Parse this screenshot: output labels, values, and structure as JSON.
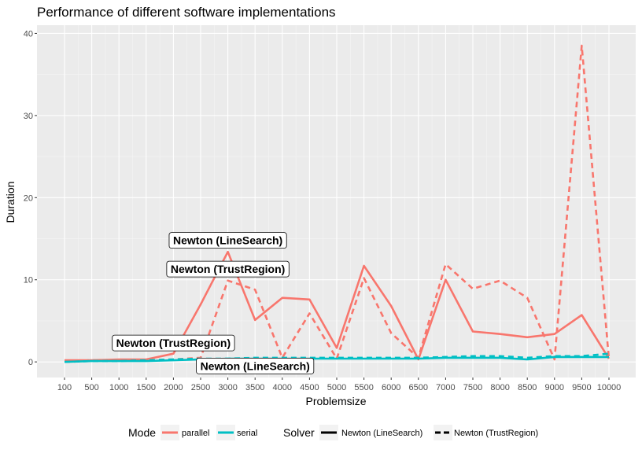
{
  "chart_data": {
    "type": "line",
    "title": "Performance of different software implementations",
    "xlabel": "Problemsize",
    "ylabel": "Duration",
    "categories": [
      "100",
      "500",
      "1000",
      "1500",
      "2000",
      "2500",
      "3000",
      "3500",
      "4000",
      "4500",
      "5000",
      "5500",
      "6000",
      "6500",
      "7000",
      "7500",
      "8000",
      "8500",
      "9000",
      "9500",
      "10000"
    ],
    "y_ticks": [
      0,
      10,
      20,
      30,
      40
    ],
    "ylim": [
      -1.9,
      41
    ],
    "grid": true,
    "series": [
      {
        "mode": "parallel",
        "solver": "Newton (LineSearch)",
        "color": "#F8766D",
        "dash": "solid",
        "values": [
          0.2,
          0.2,
          0.3,
          0.3,
          1.0,
          7.0,
          13.4,
          5.1,
          7.8,
          7.6,
          1.7,
          11.7,
          6.8,
          0.3,
          10.0,
          3.7,
          3.4,
          3.0,
          3.4,
          5.7,
          0.4
        ]
      },
      {
        "mode": "parallel",
        "solver": "Newton (TrustRegion)",
        "color": "#F8766D",
        "dash": "dashed",
        "values": [
          0.1,
          0.2,
          0.2,
          0.2,
          0.3,
          0.5,
          9.9,
          8.8,
          0.5,
          5.9,
          0.4,
          10.2,
          3.5,
          0.5,
          11.9,
          8.9,
          9.9,
          7.8,
          0.3,
          38.5,
          0.3
        ]
      },
      {
        "mode": "serial",
        "solver": "Newton (LineSearch)",
        "color": "#00BFC4",
        "dash": "solid",
        "values": [
          0.0,
          0.1,
          0.1,
          0.1,
          0.2,
          0.3,
          0.4,
          0.4,
          0.4,
          0.4,
          0.4,
          0.4,
          0.4,
          0.4,
          0.5,
          0.5,
          0.5,
          0.3,
          0.6,
          0.6,
          0.6
        ]
      },
      {
        "mode": "serial",
        "solver": "Newton (TrustRegion)",
        "color": "#00BFC4",
        "dash": "dashed",
        "values": [
          0.0,
          0.1,
          0.1,
          0.2,
          0.3,
          0.4,
          0.4,
          0.5,
          0.5,
          0.5,
          0.5,
          0.5,
          0.5,
          0.5,
          0.6,
          0.7,
          0.7,
          0.5,
          0.7,
          0.7,
          1.0
        ]
      }
    ],
    "annotations": [
      {
        "text": "Newton (LineSearch)",
        "x": "3000",
        "y": 14.8
      },
      {
        "text": "Newton (TrustRegion)",
        "x": "3000",
        "y": 11.3
      },
      {
        "text": "Newton (TrustRegion)",
        "x": "2000",
        "y": 2.3
      },
      {
        "text": "Newton (LineSearch)",
        "x": "3500",
        "y": -0.5
      }
    ],
    "legend": {
      "position": "bottom",
      "mode_title": "Mode",
      "mode_items": [
        {
          "label": "parallel",
          "color": "#F8766D"
        },
        {
          "label": "serial",
          "color": "#00BFC4"
        }
      ],
      "solver_title": "Solver",
      "solver_items": [
        {
          "label": "Newton (LineSearch)",
          "dash": "solid"
        },
        {
          "label": "Newton (TrustRegion)",
          "dash": "dashed"
        }
      ]
    }
  }
}
